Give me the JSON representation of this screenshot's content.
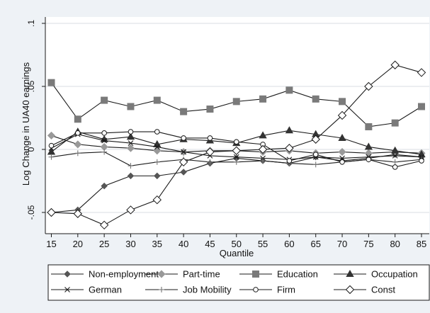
{
  "chart_data": {
    "type": "line",
    "title": "",
    "xlabel": "Quantile",
    "ylabel": "Log Change in UA40 earnings",
    "x": [
      15,
      20,
      25,
      30,
      35,
      40,
      45,
      50,
      55,
      60,
      65,
      70,
      75,
      80,
      85
    ],
    "xticks": [
      "15",
      "20",
      "25",
      "30",
      "35",
      "40",
      "45",
      "50",
      "55",
      "60",
      "65",
      "70",
      "75",
      "80",
      "85"
    ],
    "yticks": [
      {
        "value": -0.05,
        "label": "-.05"
      },
      {
        "value": 0,
        "label": "0"
      },
      {
        "value": 0.05,
        "label": ".05"
      },
      {
        "value": 0.1,
        "label": ".1"
      }
    ],
    "ylim": [
      -0.065,
      0.105
    ],
    "xlim": [
      14,
      86
    ],
    "grid": "horizontal",
    "legend_position": "bottom",
    "colors": {
      "line": "#1a1a1a",
      "marker_gray": "#999999",
      "marker_dark": "#555555",
      "grid": "#d9dde3",
      "plot_bg": "#ffffff",
      "outer_bg": "#eef2f6"
    },
    "series": [
      {
        "name": "Non-employment",
        "marker": "diamond-dark",
        "values": [
          -0.05,
          -0.048,
          -0.029,
          -0.021,
          -0.021,
          -0.018,
          -0.011,
          -0.007,
          -0.009,
          -0.011,
          -0.006,
          -0.009,
          -0.007,
          -0.004,
          -0.006
        ]
      },
      {
        "name": "Part-time",
        "marker": "diamond-gray",
        "values": [
          0.011,
          0.004,
          0.002,
          0.001,
          -0.001,
          -0.002,
          -0.001,
          -0.001,
          -0.002,
          -0.001,
          -0.003,
          -0.002,
          -0.003,
          -0.002,
          -0.003
        ]
      },
      {
        "name": "Education",
        "marker": "square",
        "values": [
          0.053,
          0.024,
          0.039,
          0.034,
          0.039,
          0.03,
          0.032,
          0.038,
          0.04,
          0.047,
          0.04,
          0.038,
          0.018,
          0.021,
          0.034
        ]
      },
      {
        "name": "Occupation",
        "marker": "triangle",
        "values": [
          -0.002,
          0.014,
          0.008,
          0.01,
          0.004,
          0.008,
          0.007,
          0.005,
          0.011,
          0.015,
          0.012,
          0.009,
          0.002,
          -0.001,
          -0.004
        ]
      },
      {
        "name": "German",
        "marker": "x",
        "values": [
          0.001,
          0.012,
          0.007,
          0.005,
          0.002,
          -0.002,
          -0.005,
          -0.006,
          -0.007,
          -0.008,
          -0.006,
          -0.007,
          -0.006,
          -0.005,
          -0.006
        ]
      },
      {
        "name": "Job Mobility",
        "marker": "plus",
        "values": [
          -0.006,
          -0.003,
          -0.002,
          -0.013,
          -0.01,
          -0.008,
          -0.01,
          -0.01,
          -0.009,
          -0.011,
          -0.012,
          -0.01,
          -0.008,
          -0.01,
          -0.008
        ]
      },
      {
        "name": "Firm",
        "marker": "circle",
        "values": [
          0.003,
          0.013,
          0.013,
          0.014,
          0.014,
          0.009,
          0.009,
          0.006,
          0.004,
          -0.009,
          -0.004,
          -0.01,
          -0.008,
          -0.014,
          -0.009
        ]
      },
      {
        "name": "Const",
        "marker": "diamond-open",
        "values": [
          -0.05,
          -0.051,
          -0.06,
          -0.048,
          -0.04,
          -0.01,
          -0.002,
          -0.001,
          0.0,
          0.001,
          0.008,
          0.027,
          0.05,
          0.067,
          0.061
        ]
      }
    ]
  }
}
